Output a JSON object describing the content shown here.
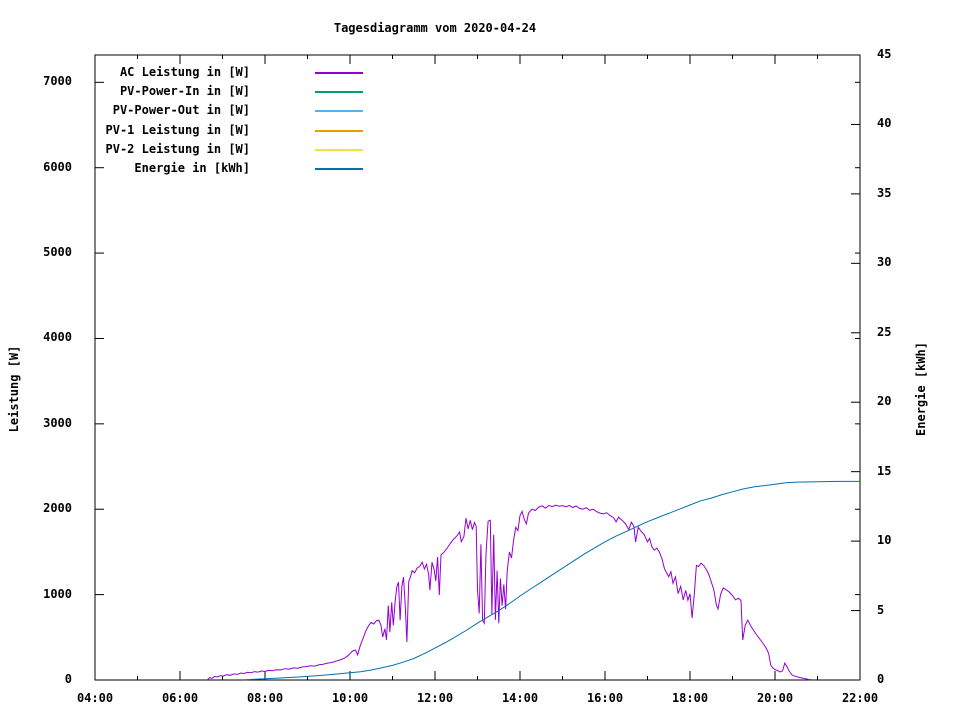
{
  "title": "Tagesdiagramm vom 2020-04-24",
  "colors": {
    "axis": "#000000",
    "background": "#ffffff",
    "ac_leistung": "#9400d3",
    "pv_power_in": "#009e73",
    "pv_power_out": "#56b4e9",
    "pv1_leistung": "#e69f00",
    "pv2_leistung": "#f0e442",
    "energie": "#0072b2"
  },
  "axes": {
    "x": {
      "min_hour": 4,
      "max_hour": 22,
      "major_tick_hours": [
        4,
        6,
        8,
        10,
        12,
        14,
        16,
        18,
        20,
        22
      ],
      "minor_tick_hours": [
        5,
        7,
        9,
        11,
        13,
        15,
        17,
        19,
        21
      ],
      "tick_labels": [
        "04:00",
        "06:00",
        "08:00",
        "10:00",
        "12:00",
        "14:00",
        "16:00",
        "18:00",
        "20:00",
        "22:00"
      ]
    },
    "y_left": {
      "title": "Leistung [W]",
      "min": 0,
      "max": 7320,
      "ticks": [
        0,
        1000,
        2000,
        3000,
        4000,
        5000,
        6000,
        7000
      ],
      "tick_labels": [
        "0",
        "1000",
        "2000",
        "3000",
        "4000",
        "5000",
        "6000",
        "7000"
      ]
    },
    "y_right": {
      "title": "Energie [kWh]",
      "min": 0,
      "max": 45,
      "ticks": [
        0,
        5,
        10,
        15,
        20,
        25,
        30,
        35,
        40,
        45
      ],
      "tick_labels": [
        "0",
        "5",
        "10",
        "15",
        "20",
        "25",
        "30",
        "35",
        "40",
        "45"
      ]
    }
  },
  "chart_data": {
    "type": "line",
    "title": "Tagesdiagramm vom 2020-04-24",
    "xlabel": "",
    "x_unit": "time of day (decimal hours)",
    "xlim": [
      4,
      22
    ],
    "ylim_left": [
      0,
      7320
    ],
    "ylim_right": [
      0,
      45
    ],
    "grid": false,
    "legend_position": "top-left-inside",
    "series": [
      {
        "name": "AC Leistung in [W]",
        "color": "#9400d3",
        "axis": "left",
        "points": [
          [
            6.65,
            5
          ],
          [
            6.7,
            28
          ],
          [
            6.75,
            20
          ],
          [
            6.82,
            42
          ],
          [
            6.88,
            35
          ],
          [
            6.95,
            52
          ],
          [
            7.02,
            46
          ],
          [
            7.1,
            62
          ],
          [
            7.18,
            55
          ],
          [
            7.27,
            72
          ],
          [
            7.35,
            66
          ],
          [
            7.43,
            82
          ],
          [
            7.5,
            75
          ],
          [
            7.58,
            90
          ],
          [
            7.67,
            84
          ],
          [
            7.75,
            98
          ],
          [
            7.83,
            92
          ],
          [
            7.92,
            105
          ],
          [
            8.0,
            99
          ],
          [
            8.08,
            112
          ],
          [
            8.17,
            108
          ],
          [
            8.27,
            120
          ],
          [
            8.37,
            118
          ],
          [
            8.47,
            132
          ],
          [
            8.57,
            128
          ],
          [
            8.67,
            142
          ],
          [
            8.77,
            138
          ],
          [
            8.87,
            152
          ],
          [
            8.97,
            158
          ],
          [
            9.07,
            168
          ],
          [
            9.17,
            163
          ],
          [
            9.27,
            178
          ],
          [
            9.37,
            185
          ],
          [
            9.47,
            198
          ],
          [
            9.57,
            205
          ],
          [
            9.67,
            220
          ],
          [
            9.77,
            235
          ],
          [
            9.87,
            255
          ],
          [
            9.95,
            285
          ],
          [
            10.02,
            320
          ],
          [
            10.08,
            345
          ],
          [
            10.13,
            350
          ],
          [
            10.18,
            295
          ],
          [
            10.24,
            400
          ],
          [
            10.3,
            480
          ],
          [
            10.37,
            570
          ],
          [
            10.44,
            640
          ],
          [
            10.5,
            675
          ],
          [
            10.56,
            655
          ],
          [
            10.62,
            695
          ],
          [
            10.68,
            700
          ],
          [
            10.73,
            640
          ],
          [
            10.77,
            505
          ],
          [
            10.82,
            600
          ],
          [
            10.86,
            470
          ],
          [
            10.9,
            870
          ],
          [
            10.94,
            560
          ],
          [
            10.98,
            910
          ],
          [
            11.02,
            640
          ],
          [
            11.06,
            915
          ],
          [
            11.1,
            1090
          ],
          [
            11.14,
            1145
          ],
          [
            11.18,
            700
          ],
          [
            11.22,
            1100
          ],
          [
            11.26,
            1205
          ],
          [
            11.3,
            860
          ],
          [
            11.34,
            445
          ],
          [
            11.38,
            1150
          ],
          [
            11.42,
            1205
          ],
          [
            11.46,
            1280
          ],
          [
            11.52,
            1255
          ],
          [
            11.58,
            1310
          ],
          [
            11.64,
            1330
          ],
          [
            11.7,
            1380
          ],
          [
            11.75,
            1300
          ],
          [
            11.8,
            1355
          ],
          [
            11.85,
            1240
          ],
          [
            11.88,
            1053
          ],
          [
            11.93,
            1380
          ],
          [
            11.98,
            1290
          ],
          [
            12.02,
            1160
          ],
          [
            12.06,
            1440
          ],
          [
            12.1,
            995
          ],
          [
            12.14,
            1465
          ],
          [
            12.2,
            1490
          ],
          [
            12.28,
            1540
          ],
          [
            12.36,
            1600
          ],
          [
            12.44,
            1650
          ],
          [
            12.52,
            1690
          ],
          [
            12.58,
            1735
          ],
          [
            12.62,
            1620
          ],
          [
            12.68,
            1680
          ],
          [
            12.73,
            1895
          ],
          [
            12.78,
            1770
          ],
          [
            12.83,
            1870
          ],
          [
            12.88,
            1760
          ],
          [
            12.93,
            1845
          ],
          [
            12.97,
            1800
          ],
          [
            13.0,
            1055
          ],
          [
            13.04,
            780
          ],
          [
            13.08,
            1590
          ],
          [
            13.12,
            700
          ],
          [
            13.16,
            665
          ],
          [
            13.2,
            1480
          ],
          [
            13.25,
            1860
          ],
          [
            13.3,
            1870
          ],
          [
            13.34,
            770
          ],
          [
            13.38,
            1700
          ],
          [
            13.42,
            705
          ],
          [
            13.46,
            1280
          ],
          [
            13.5,
            665
          ],
          [
            13.54,
            1190
          ],
          [
            13.58,
            870
          ],
          [
            13.62,
            1120
          ],
          [
            13.66,
            830
          ],
          [
            13.7,
            1275
          ],
          [
            13.75,
            1500
          ],
          [
            13.8,
            1430
          ],
          [
            13.85,
            1640
          ],
          [
            13.9,
            1790
          ],
          [
            13.95,
            1750
          ],
          [
            14.0,
            1925
          ],
          [
            14.05,
            1975
          ],
          [
            14.1,
            1880
          ],
          [
            14.15,
            1830
          ],
          [
            14.2,
            1955
          ],
          [
            14.28,
            2000
          ],
          [
            14.36,
            1985
          ],
          [
            14.44,
            2025
          ],
          [
            14.52,
            2040
          ],
          [
            14.6,
            2012
          ],
          [
            14.68,
            2045
          ],
          [
            14.76,
            2030
          ],
          [
            14.84,
            2047
          ],
          [
            14.92,
            2035
          ],
          [
            15.0,
            2042
          ],
          [
            15.08,
            2028
          ],
          [
            15.16,
            2045
          ],
          [
            15.24,
            2020
          ],
          [
            15.32,
            2038
          ],
          [
            15.4,
            2010
          ],
          [
            15.48,
            2000
          ],
          [
            15.56,
            2018
          ],
          [
            15.64,
            1988
          ],
          [
            15.72,
            2000
          ],
          [
            15.8,
            1972
          ],
          [
            15.88,
            1955
          ],
          [
            15.96,
            1948
          ],
          [
            16.04,
            1958
          ],
          [
            16.12,
            1925
          ],
          [
            16.2,
            1902
          ],
          [
            16.26,
            1852
          ],
          [
            16.32,
            1908
          ],
          [
            16.4,
            1872
          ],
          [
            16.48,
            1832
          ],
          [
            16.56,
            1762
          ],
          [
            16.62,
            1848
          ],
          [
            16.68,
            1800
          ],
          [
            16.72,
            1615
          ],
          [
            16.78,
            1788
          ],
          [
            16.85,
            1742
          ],
          [
            16.92,
            1705
          ],
          [
            17.0,
            1618
          ],
          [
            17.05,
            1658
          ],
          [
            17.1,
            1562
          ],
          [
            17.16,
            1520
          ],
          [
            17.22,
            1545
          ],
          [
            17.28,
            1498
          ],
          [
            17.34,
            1420
          ],
          [
            17.4,
            1302
          ],
          [
            17.46,
            1245
          ],
          [
            17.5,
            1210
          ],
          [
            17.55,
            1268
          ],
          [
            17.6,
            1132
          ],
          [
            17.66,
            1208
          ],
          [
            17.72,
            1012
          ],
          [
            17.78,
            1098
          ],
          [
            17.84,
            938
          ],
          [
            17.9,
            1048
          ],
          [
            17.95,
            935
          ],
          [
            18.0,
            1010
          ],
          [
            18.05,
            726
          ],
          [
            18.1,
            1005
          ],
          [
            18.15,
            1342
          ],
          [
            18.2,
            1328
          ],
          [
            18.26,
            1368
          ],
          [
            18.32,
            1342
          ],
          [
            18.38,
            1298
          ],
          [
            18.44,
            1240
          ],
          [
            18.5,
            1148
          ],
          [
            18.56,
            1058
          ],
          [
            18.62,
            880
          ],
          [
            18.66,
            832
          ],
          [
            18.72,
            1002
          ],
          [
            18.78,
            1078
          ],
          [
            18.85,
            1058
          ],
          [
            18.92,
            1032
          ],
          [
            19.0,
            988
          ],
          [
            19.07,
            938
          ],
          [
            19.14,
            958
          ],
          [
            19.2,
            930
          ],
          [
            19.24,
            468
          ],
          [
            19.3,
            645
          ],
          [
            19.36,
            700
          ],
          [
            19.42,
            640
          ],
          [
            19.5,
            578
          ],
          [
            19.58,
            520
          ],
          [
            19.66,
            468
          ],
          [
            19.73,
            420
          ],
          [
            19.79,
            374
          ],
          [
            19.85,
            315
          ],
          [
            19.9,
            176
          ],
          [
            19.95,
            142
          ],
          [
            20.0,
            122
          ],
          [
            20.06,
            110
          ],
          [
            20.12,
            95
          ],
          [
            20.18,
            108
          ],
          [
            20.23,
            198
          ],
          [
            20.28,
            158
          ],
          [
            20.33,
            108
          ],
          [
            20.4,
            60
          ],
          [
            20.47,
            45
          ],
          [
            20.55,
            34
          ],
          [
            20.63,
            24
          ],
          [
            20.72,
            14
          ],
          [
            20.8,
            6
          ],
          [
            20.87,
            2
          ]
        ]
      },
      {
        "name": "PV-Power-In in [W]",
        "color": "#009e73",
        "axis": "left",
        "points": []
      },
      {
        "name": "PV-Power-Out in [W]",
        "color": "#56b4e9",
        "axis": "left",
        "points": []
      },
      {
        "name": "PV-1 Leistung in [W]",
        "color": "#e69f00",
        "axis": "left",
        "points": []
      },
      {
        "name": "PV-2 Leistung in [W]",
        "color": "#f0e442",
        "axis": "left",
        "points": []
      },
      {
        "name": "Energie in [kWh]",
        "color": "#0072b2",
        "axis": "right",
        "points": [
          [
            7.5,
            0.02
          ],
          [
            7.75,
            0.05
          ],
          [
            8.0,
            0.09
          ],
          [
            8.25,
            0.13
          ],
          [
            8.5,
            0.17
          ],
          [
            8.75,
            0.21
          ],
          [
            9.0,
            0.26
          ],
          [
            9.25,
            0.32
          ],
          [
            9.5,
            0.38
          ],
          [
            9.75,
            0.45
          ],
          [
            10.0,
            0.52
          ],
          [
            10.25,
            0.6
          ],
          [
            10.5,
            0.72
          ],
          [
            10.75,
            0.88
          ],
          [
            11.0,
            1.05
          ],
          [
            11.25,
            1.28
          ],
          [
            11.5,
            1.55
          ],
          [
            11.75,
            1.9
          ],
          [
            12.0,
            2.3
          ],
          [
            12.25,
            2.7
          ],
          [
            12.5,
            3.15
          ],
          [
            12.75,
            3.6
          ],
          [
            13.0,
            4.1
          ],
          [
            13.25,
            4.55
          ],
          [
            13.5,
            5.0
          ],
          [
            13.75,
            5.5
          ],
          [
            14.0,
            6.05
          ],
          [
            14.25,
            6.55
          ],
          [
            14.5,
            7.05
          ],
          [
            14.75,
            7.55
          ],
          [
            15.0,
            8.05
          ],
          [
            15.25,
            8.55
          ],
          [
            15.5,
            9.05
          ],
          [
            15.75,
            9.5
          ],
          [
            16.0,
            9.95
          ],
          [
            16.25,
            10.35
          ],
          [
            16.5,
            10.7
          ],
          [
            16.75,
            11.05
          ],
          [
            17.0,
            11.4
          ],
          [
            17.25,
            11.7
          ],
          [
            17.5,
            12.0
          ],
          [
            17.75,
            12.3
          ],
          [
            18.0,
            12.6
          ],
          [
            18.25,
            12.9
          ],
          [
            18.5,
            13.1
          ],
          [
            18.75,
            13.35
          ],
          [
            19.0,
            13.55
          ],
          [
            19.25,
            13.75
          ],
          [
            19.5,
            13.9
          ],
          [
            19.75,
            14.0
          ],
          [
            20.0,
            14.1
          ],
          [
            20.25,
            14.2
          ],
          [
            20.5,
            14.25
          ],
          [
            21.0,
            14.28
          ],
          [
            21.5,
            14.3
          ],
          [
            22.0,
            14.3
          ]
        ]
      }
    ]
  }
}
